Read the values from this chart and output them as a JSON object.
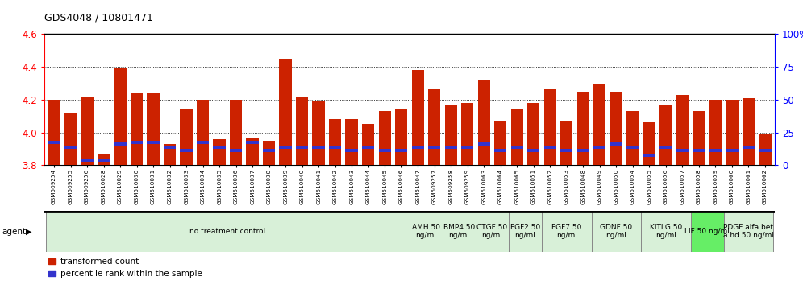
{
  "title": "GDS4048 / 10801471",
  "samples": [
    "GSM509254",
    "GSM509255",
    "GSM509256",
    "GSM510028",
    "GSM510029",
    "GSM510030",
    "GSM510031",
    "GSM510032",
    "GSM510033",
    "GSM510034",
    "GSM510035",
    "GSM510036",
    "GSM510037",
    "GSM510038",
    "GSM510039",
    "GSM510040",
    "GSM510041",
    "GSM510042",
    "GSM510043",
    "GSM510044",
    "GSM510045",
    "GSM510046",
    "GSM510047",
    "GSM509257",
    "GSM509258",
    "GSM509259",
    "GSM510063",
    "GSM510064",
    "GSM510065",
    "GSM510051",
    "GSM510052",
    "GSM510053",
    "GSM510048",
    "GSM510049",
    "GSM510050",
    "GSM510054",
    "GSM510055",
    "GSM510056",
    "GSM510057",
    "GSM510058",
    "GSM510059",
    "GSM510060",
    "GSM510061",
    "GSM510062"
  ],
  "red_values": [
    4.2,
    4.12,
    4.22,
    3.87,
    4.39,
    4.24,
    4.24,
    3.93,
    4.14,
    4.2,
    3.96,
    4.2,
    3.97,
    3.95,
    4.45,
    4.22,
    4.19,
    4.08,
    4.08,
    4.05,
    4.13,
    4.14,
    4.38,
    4.27,
    4.17,
    4.18,
    4.32,
    4.07,
    4.14,
    4.18,
    4.27,
    4.07,
    4.25,
    4.3,
    4.25,
    4.13,
    4.06,
    4.17,
    4.23,
    4.13,
    4.2,
    4.2,
    4.21,
    3.99
  ],
  "blue_positions": [
    3.93,
    3.9,
    3.82,
    3.82,
    3.92,
    3.93,
    3.93,
    3.9,
    3.88,
    3.93,
    3.9,
    3.88,
    3.93,
    3.88,
    3.9,
    3.9,
    3.9,
    3.9,
    3.88,
    3.9,
    3.88,
    3.88,
    3.9,
    3.9,
    3.9,
    3.9,
    3.92,
    3.88,
    3.9,
    3.88,
    3.9,
    3.88,
    3.88,
    3.9,
    3.92,
    3.9,
    3.85,
    3.9,
    3.88,
    3.88,
    3.88,
    3.88,
    3.9,
    3.88
  ],
  "ylim_left": [
    3.8,
    4.6
  ],
  "ylim_right": [
    0,
    100
  ],
  "yticks_left": [
    3.8,
    4.0,
    4.2,
    4.4,
    4.6
  ],
  "yticks_right": [
    0,
    25,
    50,
    75,
    100
  ],
  "bar_color": "#cc2200",
  "blue_color": "#3333cc",
  "agent_groups": [
    {
      "label": "no treatment control",
      "start": 0,
      "end": 22,
      "color": "#d8f0d8",
      "bright": false
    },
    {
      "label": "AMH 50\nng/ml",
      "start": 22,
      "end": 24,
      "color": "#d8f0d8",
      "bright": false
    },
    {
      "label": "BMP4 50\nng/ml",
      "start": 24,
      "end": 26,
      "color": "#d8f0d8",
      "bright": false
    },
    {
      "label": "CTGF 50\nng/ml",
      "start": 26,
      "end": 28,
      "color": "#d8f0d8",
      "bright": false
    },
    {
      "label": "FGF2 50\nng/ml",
      "start": 28,
      "end": 30,
      "color": "#d8f0d8",
      "bright": false
    },
    {
      "label": "FGF7 50\nng/ml",
      "start": 30,
      "end": 33,
      "color": "#d8f0d8",
      "bright": false
    },
    {
      "label": "GDNF 50\nng/ml",
      "start": 33,
      "end": 36,
      "color": "#d8f0d8",
      "bright": false
    },
    {
      "label": "KITLG 50\nng/ml",
      "start": 36,
      "end": 39,
      "color": "#d8f0d8",
      "bright": false
    },
    {
      "label": "LIF 50 ng/ml",
      "start": 39,
      "end": 41,
      "color": "#66ee66",
      "bright": true
    },
    {
      "label": "PDGF alfa bet\na hd 50 ng/ml",
      "start": 41,
      "end": 44,
      "color": "#d8f0d8",
      "bright": false
    }
  ],
  "figsize": [
    9.96,
    3.54
  ],
  "dpi": 100
}
